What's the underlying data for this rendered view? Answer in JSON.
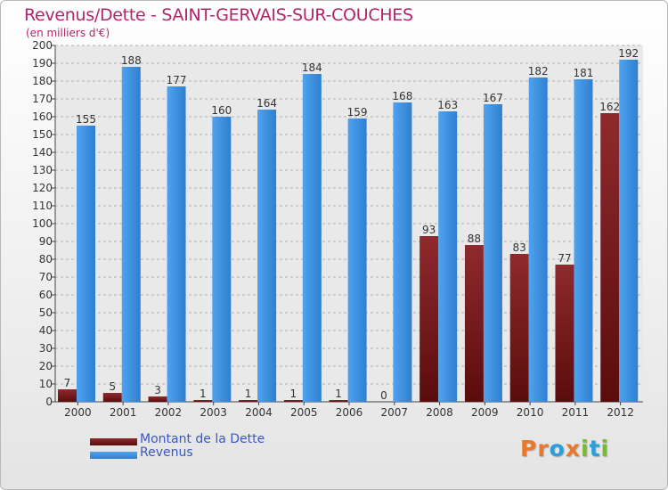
{
  "chart_data": {
    "type": "bar",
    "title": "Revenus/Dette - SAINT-GERVAIS-SUR-COUCHES",
    "subtitle": "(en milliers d'€)",
    "categories": [
      "2000",
      "2001",
      "2002",
      "2003",
      "2004",
      "2005",
      "2006",
      "2007",
      "2008",
      "2009",
      "2010",
      "2011",
      "2012"
    ],
    "series": [
      {
        "name": "Montant de la Dette",
        "color": "#7a1c1c",
        "values": [
          7,
          5,
          3,
          1,
          1,
          1,
          1,
          0,
          93,
          88,
          83,
          77,
          162
        ]
      },
      {
        "name": "Revenus",
        "color": "#3d8fe0",
        "values": [
          155,
          188,
          177,
          160,
          164,
          184,
          159,
          168,
          163,
          167,
          182,
          181,
          192
        ]
      }
    ],
    "ylim": [
      0,
      200
    ],
    "yticks": [
      0,
      10,
      20,
      30,
      40,
      50,
      60,
      70,
      80,
      90,
      100,
      110,
      120,
      130,
      140,
      150,
      160,
      170,
      180,
      190,
      200
    ],
    "grid": true,
    "legend_position": "bottom-left"
  },
  "logo": {
    "text": "Proxiti",
    "letters": [
      {
        "ch": "P",
        "color": "#e8792c"
      },
      {
        "ch": "r",
        "color": "#e8792c"
      },
      {
        "ch": "o",
        "color": "#2a9fd9"
      },
      {
        "ch": "x",
        "color": "#e8792c"
      },
      {
        "ch": "i",
        "color": "#7ab83a"
      },
      {
        "ch": "t",
        "color": "#2a9fd9"
      },
      {
        "ch": "i",
        "color": "#7ab83a"
      }
    ]
  }
}
